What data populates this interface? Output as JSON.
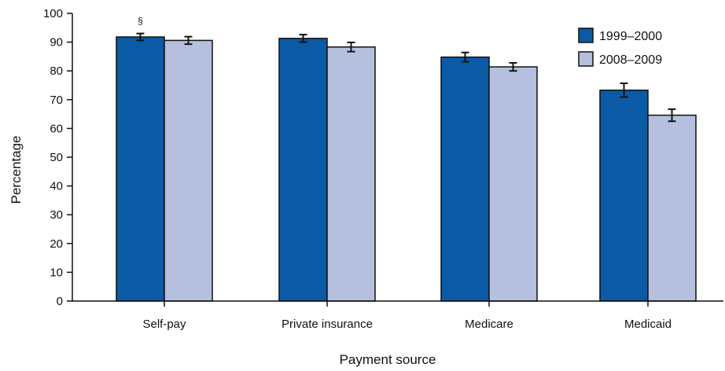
{
  "chart_data": {
    "type": "bar",
    "title": "",
    "xlabel": "Payment source",
    "ylabel": "Percentage",
    "ylim": [
      0,
      100
    ],
    "yticks": [
      0,
      10,
      20,
      30,
      40,
      50,
      60,
      70,
      80,
      90,
      100
    ],
    "categories": [
      "Self-pay",
      "Private insurance",
      "Medicare",
      "Medicaid"
    ],
    "series": [
      {
        "name": "1999–2000",
        "color": "#0a5aa5",
        "values": [
          91.8,
          91.3,
          84.8,
          73.3
        ],
        "error": [
          1.2,
          1.3,
          1.6,
          2.4
        ]
      },
      {
        "name": "2008–2009",
        "color": "#b4c0de",
        "values": [
          90.6,
          88.3,
          81.4,
          64.6
        ],
        "error": [
          1.3,
          1.6,
          1.4,
          2.1
        ]
      }
    ],
    "annotations": [
      {
        "text": "§",
        "category": "Self-pay",
        "series": 0
      }
    ],
    "legend": {
      "position": "top-right"
    },
    "grid": false
  }
}
